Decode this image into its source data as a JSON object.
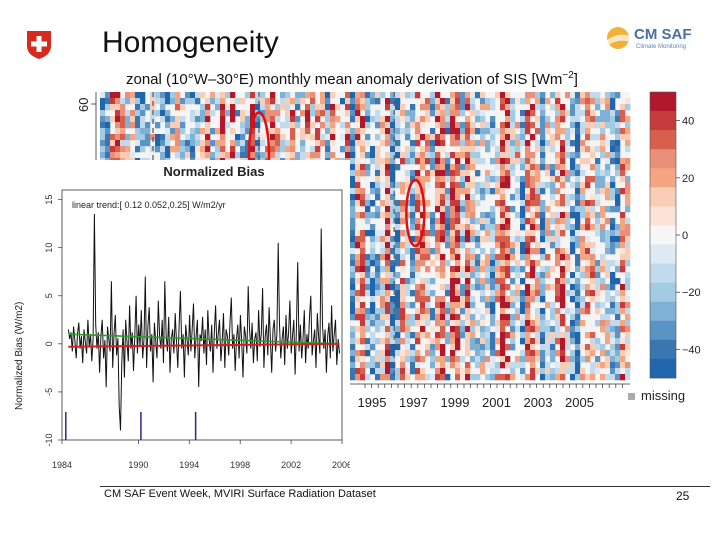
{
  "slide": {
    "title": "Homogeneity",
    "logo": {
      "name": "CM SAF",
      "tagline": "Climate Monitoring"
    },
    "footer": "CM SAF Event Week, MVIRI Surface Radiation Dataset",
    "page_number": "25",
    "missing_label": "missing"
  },
  "chart_data": [
    {
      "type": "heatmap",
      "title": "zonal (10°W–30°E) monthly mean anomaly derivation of SIS [Wm",
      "title_exponent": "−2",
      "y_tick_labels": [
        "60"
      ],
      "x_tick_labels": [
        "1995",
        "1997",
        "1999",
        "2001",
        "2003",
        "2005"
      ],
      "colorbar": {
        "tick_labels": [
          "40",
          "20",
          "0",
          "−20",
          "−40"
        ],
        "tick_values": [
          40,
          20,
          0,
          -20,
          -40
        ],
        "range": [
          -50,
          50
        ],
        "colors": [
          "#b2182b",
          "#c63b3b",
          "#d6604d",
          "#e8907a",
          "#f4a582",
          "#f9cdb6",
          "#fbe3d6",
          "#f7f7f7",
          "#ddeaf3",
          "#c2dbec",
          "#a3cbe3",
          "#7fb0d5",
          "#5994c4",
          "#3a76b0",
          "#2166ac"
        ]
      },
      "annotations": [
        "red-ellipse",
        "red-ellipse"
      ]
    },
    {
      "type": "line",
      "title": "Normalized Bias",
      "annotation": "linear trend:[ 0.12 0.052,0.25] W/m2/yr",
      "ylabel": "Normalized Bias (W/m2)",
      "xlim": [
        1984,
        2006
      ],
      "ylim": [
        -10,
        16
      ],
      "x_ticks": [
        1984,
        1990,
        1994,
        1998,
        2002,
        2006
      ],
      "x_tick_labels": [
        "1984",
        "1990",
        "1994",
        "1998",
        "2002",
        "2006"
      ],
      "y_ticks": [
        -10,
        -5,
        0,
        5,
        10,
        15
      ],
      "y_tick_labels": [
        "-10",
        "-5",
        "0",
        "5",
        "10",
        "15"
      ],
      "series": [
        {
          "values": [
            1.5,
            0.5,
            1.2,
            -0.8,
            1.8,
            0.3,
            -1.5,
            1.0,
            2.2,
            -0.5,
            0.8,
            -2.0,
            1.5,
            0.2,
            -1.0,
            2.5,
            -0.3,
            1.0,
            -1.8,
            0.5,
            13.5,
            2.0,
            -0.5,
            1.2,
            -3.0,
            0.8,
            2.5,
            -1.5,
            0.4,
            -4.5,
            1.8,
            0.5,
            -0.8,
            6.5,
            -2.5,
            1.0,
            3.0,
            -1.2,
            0.6,
            -6.5,
            -9.0,
            -2.0,
            1.5,
            -3.5,
            2.5,
            0.2,
            -1.8,
            4.0,
            -0.5,
            1.2,
            -2.8,
            0.8,
            5.0,
            -1.0,
            2.0,
            -0.3,
            3.5,
            -1.5,
            0.5,
            7.0,
            -2.5,
            1.8,
            3.8,
            -0.8,
            1.0,
            -4.0,
            2.2,
            0.3,
            -1.5,
            4.5,
            0.8,
            -0.5,
            2.5,
            -2.0,
            6.5,
            1.0,
            -0.8,
            2.8,
            -3.0,
            0.5,
            1.5,
            -1.0,
            3.2,
            0.2,
            -2.5,
            1.8,
            5.5,
            -0.5,
            1.0,
            -3.5,
            2.0,
            0.5,
            -1.2,
            3.0,
            -0.8,
            1.5,
            4.2,
            -1.5,
            0.8,
            2.5,
            -4.5,
            1.0,
            0.3,
            2.8,
            -1.0,
            1.5,
            -2.2,
            3.5,
            0.5,
            -0.8,
            2.0,
            -3.0,
            1.2,
            4.0,
            -0.5,
            1.0,
            2.5,
            -1.8,
            0.3,
            3.2,
            -2.5,
            1.5,
            0.8,
            -1.2,
            2.2,
            4.8,
            -0.5,
            1.0,
            -2.8,
            0.5,
            2.0,
            -1.5,
            3.0,
            0.2,
            -3.5,
            1.8,
            0.8,
            -1.0,
            6.0,
            1.5,
            -0.5,
            2.2,
            -2.0,
            0.5,
            1.2,
            -1.8,
            3.5,
            -0.3,
            1.0,
            5.8,
            -2.5,
            0.8,
            2.0,
            -1.2,
            3.8,
            0.5,
            -3.0,
            1.5,
            2.5,
            -0.8,
            1.0,
            10.5,
            2.0,
            -1.5,
            0.5,
            1.8,
            -2.2,
            3.0,
            -0.5,
            1.2,
            4.5,
            -1.0,
            0.8,
            2.5,
            -3.2,
            1.5,
            8.5,
            -0.8,
            2.0,
            -1.5,
            0.5,
            3.5,
            -2.0,
            1.0,
            -0.5,
            2.8,
            5.0,
            -1.2,
            0.3,
            1.5,
            -2.5,
            3.2,
            0.8,
            -1.0,
            12.0,
            2.0,
            -0.5,
            1.5,
            -3.0,
            0.8,
            2.2,
            -1.5,
            4.0,
            -0.8,
            1.0,
            2.5,
            -2.2,
            0.5,
            -1.0
          ]
        },
        {
          "name": "green-trend",
          "values": [
            1.0,
            0.0
          ]
        },
        {
          "name": "red-trend",
          "values": [
            -0.3,
            0.0
          ]
        }
      ]
    }
  ]
}
